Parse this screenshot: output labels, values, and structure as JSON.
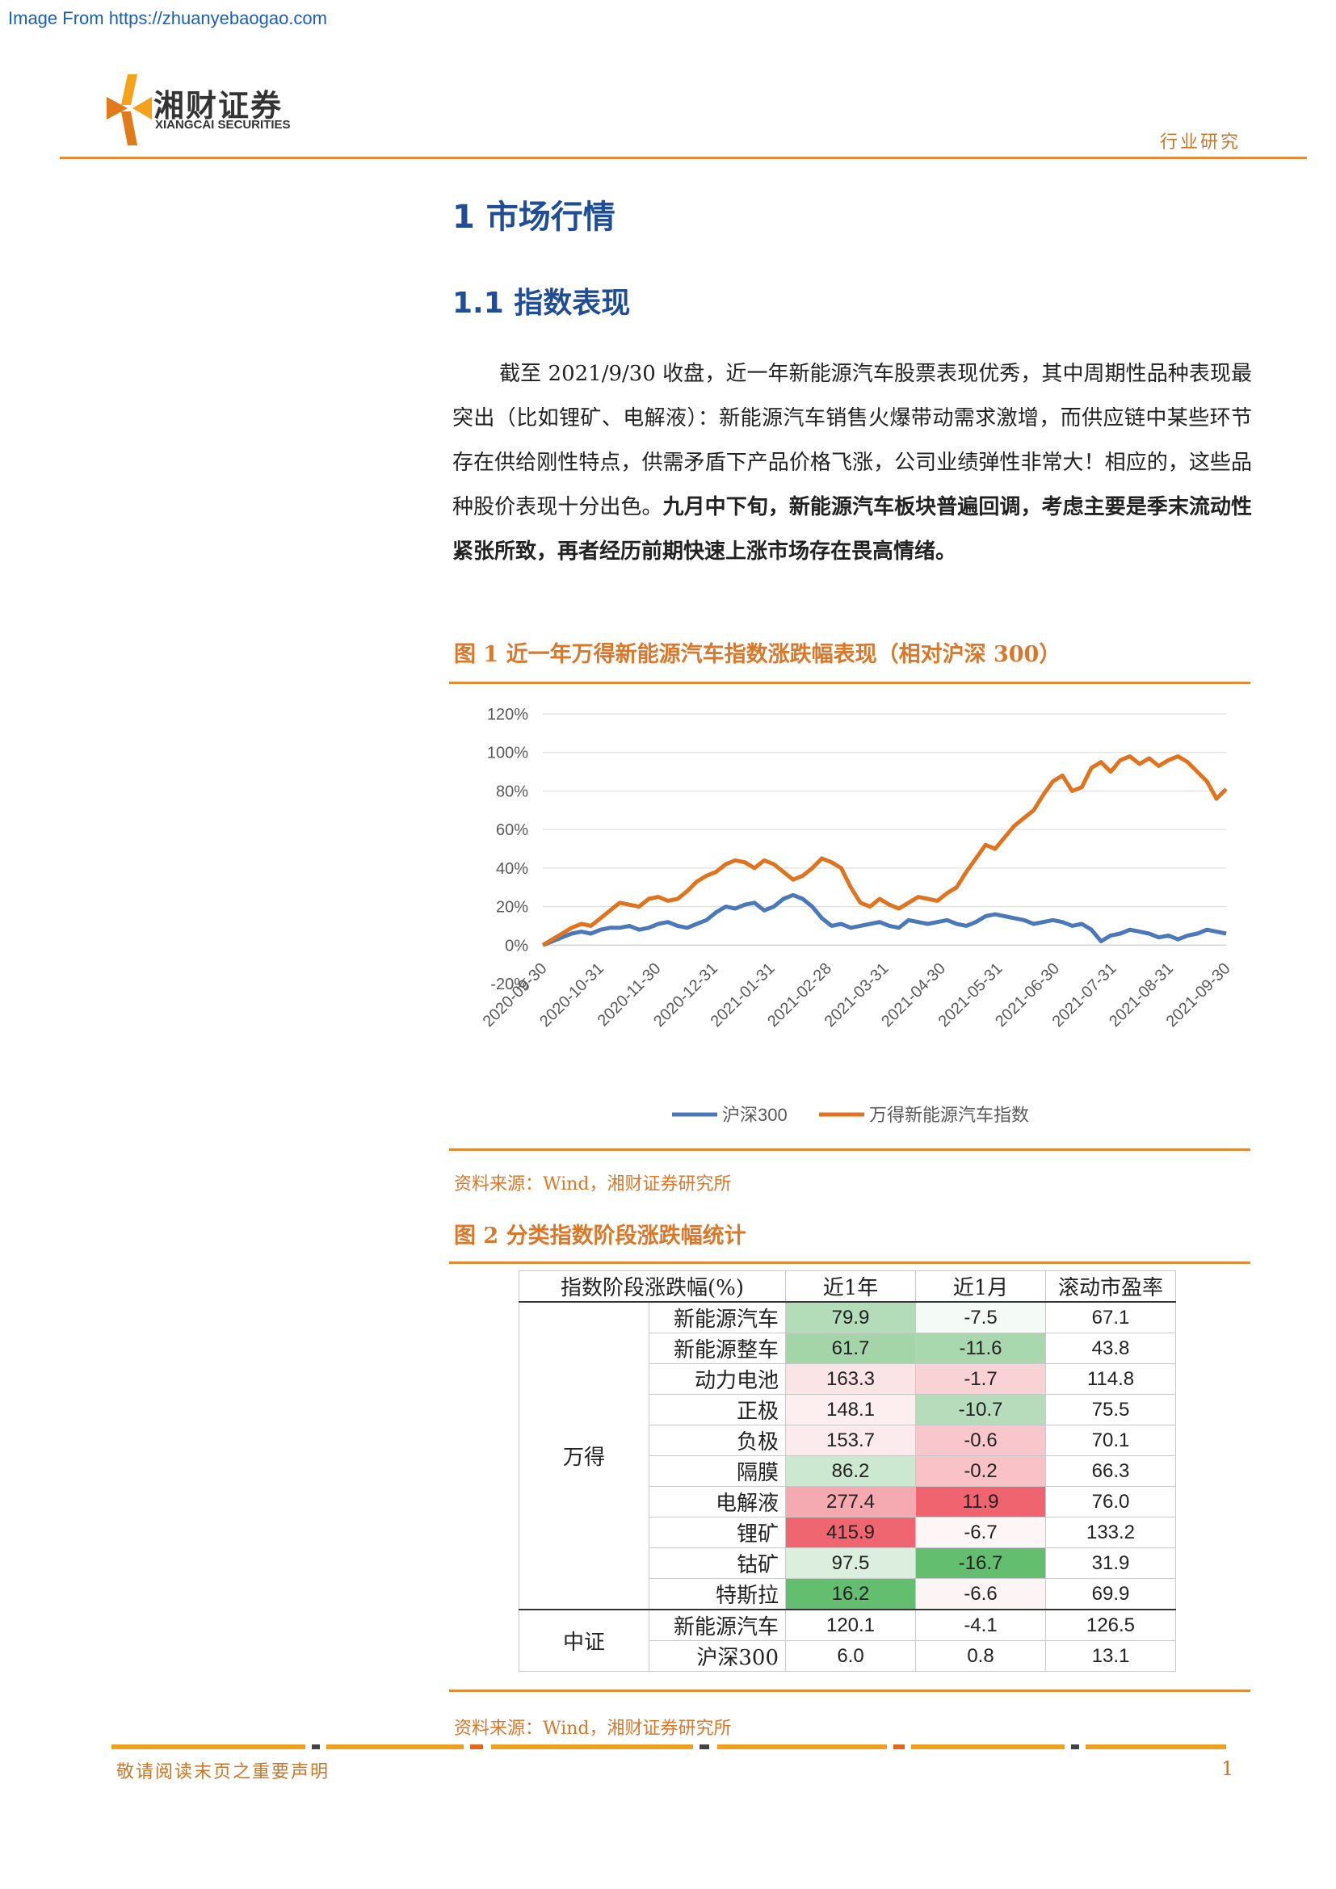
{
  "watermark": "Image From https://zhuanyebaogao.com",
  "logo": {
    "cn": "湘财证券",
    "en": "XIANGCAI SECURITIES"
  },
  "header": {
    "tag": "行业研究"
  },
  "section1": {
    "title": "1 市场行情"
  },
  "section11": {
    "title": "1.1 指数表现"
  },
  "paragraph": {
    "normal": "截至 2021/9/30 收盘，近一年新能源汽车股票表现优秀，其中周期性品种表现最突出（比如锂矿、电解液）：新能源汽车销售火爆带动需求激增，而供应链中某些环节存在供给刚性特点，供需矛盾下产品价格飞涨，公司业绩弹性非常大！相应的，这些品种股价表现十分出色。",
    "bold": "九月中下旬，新能源汽车板块普遍回调，考虑主要是季末流动性紧张所致，再者经历前期快速上涨市场存在畏高情绪。"
  },
  "figure1": {
    "title": "图 1  近一年万得新能源汽车指数涨跌幅表现（相对沪深 300）",
    "source": "资料来源：Wind，湘财证券研究所"
  },
  "figure2": {
    "title": "图 2  分类指数阶段涨跌幅统计",
    "source": "资料来源：Wind，湘财证券研究所"
  },
  "chart_data": {
    "type": "line",
    "title": "",
    "y_ticks": [
      "120%",
      "100%",
      "80%",
      "60%",
      "40%",
      "20%",
      "0%",
      "-20%"
    ],
    "ylim": [
      -20,
      120
    ],
    "x_ticks": [
      "2020-09-30",
      "2020-10-31",
      "2020-11-30",
      "2020-12-31",
      "2021-01-31",
      "2021-02-28",
      "2021-03-31",
      "2021-04-30",
      "2021-05-31",
      "2021-06-30",
      "2021-07-31",
      "2021-08-31",
      "2021-09-30"
    ],
    "legend_position": "bottom",
    "series": [
      {
        "name": "沪深300",
        "color": "#4a78b8",
        "values": [
          0,
          2,
          4,
          6,
          7,
          6,
          8,
          9,
          9,
          10,
          8,
          9,
          11,
          12,
          10,
          9,
          11,
          13,
          17,
          20,
          19,
          21,
          22,
          18,
          20,
          24,
          26,
          24,
          20,
          14,
          10,
          11,
          9,
          10,
          11,
          12,
          10,
          9,
          13,
          12,
          11,
          12,
          13,
          11,
          10,
          12,
          15,
          16,
          15,
          14,
          13,
          11,
          12,
          13,
          12,
          10,
          11,
          8,
          2,
          5,
          6,
          8,
          7,
          6,
          4,
          5,
          3,
          5,
          6,
          8,
          7,
          6
        ]
      },
      {
        "name": "万得新能源汽车指数",
        "color": "#e0731e",
        "values": [
          0,
          3,
          6,
          9,
          11,
          10,
          14,
          18,
          22,
          21,
          20,
          24,
          25,
          23,
          24,
          28,
          33,
          36,
          38,
          42,
          44,
          43,
          40,
          44,
          42,
          38,
          34,
          36,
          40,
          45,
          43,
          40,
          30,
          22,
          20,
          24,
          21,
          19,
          22,
          25,
          24,
          23,
          27,
          30,
          38,
          45,
          52,
          50,
          56,
          62,
          66,
          70,
          78,
          85,
          88,
          80,
          82,
          92,
          95,
          90,
          96,
          98,
          94,
          97,
          93,
          96,
          98,
          95,
          90,
          85,
          76,
          81
        ]
      }
    ]
  },
  "table": {
    "headers": [
      "指数阶段涨跌幅(%)",
      "近1年",
      "近1月",
      "滚动市盈率"
    ],
    "groups": [
      {
        "name": "万得",
        "rows": [
          {
            "name": "新能源汽车",
            "y1": "79.9",
            "m1": "-7.5",
            "pe": "67.1",
            "y1_color": "#b3dcb8",
            "m1_color": "#f4faf5"
          },
          {
            "name": "新能源整车",
            "y1": "61.7",
            "m1": "-11.6",
            "pe": "43.8",
            "y1_color": "#a3d5a9",
            "m1_color": "#a9d7ae"
          },
          {
            "name": "动力电池",
            "y1": "163.3",
            "m1": "-1.7",
            "pe": "114.8",
            "y1_color": "#fbe4e6",
            "m1_color": "#f9d2d6"
          },
          {
            "name": "正极",
            "y1": "148.1",
            "m1": "-10.7",
            "pe": "75.5",
            "y1_color": "#fdeef0",
            "m1_color": "#b7dcbb"
          },
          {
            "name": "负极",
            "y1": "153.7",
            "m1": "-0.6",
            "pe": "70.1",
            "y1_color": "#fcebed",
            "m1_color": "#f8c7cc"
          },
          {
            "name": "隔膜",
            "y1": "86.2",
            "m1": "-0.2",
            "pe": "66.3",
            "y1_color": "#cde8d0",
            "m1_color": "#f8c2c7"
          },
          {
            "name": "电解液",
            "y1": "277.4",
            "m1": "11.9",
            "pe": "76.0",
            "y1_color": "#f5a9b0",
            "m1_color": "#f0646f"
          },
          {
            "name": "锂矿",
            "y1": "415.9",
            "m1": "-6.7",
            "pe": "133.2",
            "y1_color": "#ef6570",
            "m1_color": "#fdf5f6"
          },
          {
            "name": "钴矿",
            "y1": "97.5",
            "m1": "-16.7",
            "pe": "31.9",
            "y1_color": "#dcefde",
            "m1_color": "#63be70"
          },
          {
            "name": "特斯拉",
            "y1": "16.2",
            "m1": "-6.6",
            "pe": "69.9",
            "y1_color": "#63be70",
            "m1_color": "#fcf4f5"
          }
        ]
      },
      {
        "name": "中证",
        "rows": [
          {
            "name": "新能源汽车",
            "y1": "120.1",
            "m1": "-4.1",
            "pe": "126.5",
            "y1_color": "#ffffff",
            "m1_color": "#ffffff"
          },
          {
            "name": "沪深300",
            "y1": "6.0",
            "m1": "0.8",
            "pe": "13.1",
            "y1_color": "#ffffff",
            "m1_color": "#ffffff"
          }
        ]
      }
    ]
  },
  "footer": {
    "left": "敬请阅读末页之重要声明",
    "page": "1"
  }
}
